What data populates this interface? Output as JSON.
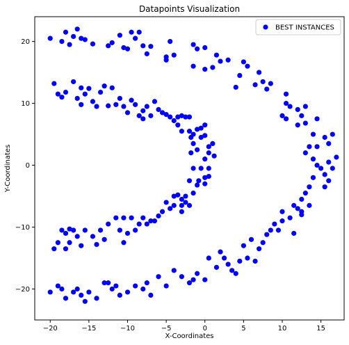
{
  "chart_data": {
    "type": "scatter",
    "title": "Datapoints Visualization",
    "xlabel": "X-Coordinates",
    "ylabel": "Y-Coordinates",
    "xlim": [
      -22,
      18
    ],
    "ylim": [
      -25,
      24
    ],
    "xticks": [
      -20,
      -15,
      -10,
      -5,
      0,
      5,
      10,
      15
    ],
    "yticks": [
      -20,
      -10,
      0,
      10,
      20
    ],
    "grid": false,
    "legend_position": "top-right",
    "color": "#0000ff",
    "series": [
      {
        "name": "BEST INSTANCES",
        "points": [
          [
            -20.0,
            20.5
          ],
          [
            -18.5,
            20.0
          ],
          [
            -18.0,
            21.5
          ],
          [
            -17.5,
            19.5
          ],
          [
            -17.0,
            20.8
          ],
          [
            -16.5,
            22.0
          ],
          [
            -16.0,
            20.5
          ],
          [
            -15.5,
            20.3
          ],
          [
            -14.5,
            19.6
          ],
          [
            -12.5,
            19.3
          ],
          [
            -12.0,
            19.8
          ],
          [
            -11.0,
            21.0
          ],
          [
            -10.5,
            19.0
          ],
          [
            -10.0,
            18.8
          ],
          [
            -9.5,
            21.5
          ],
          [
            -9.0,
            20.5
          ],
          [
            -8.5,
            21.5
          ],
          [
            -8.0,
            19.3
          ],
          [
            -7.5,
            18.0
          ],
          [
            -7.0,
            19.2
          ],
          [
            -5.0,
            17.0
          ],
          [
            -5.0,
            17.5
          ],
          [
            -4.5,
            20.0
          ],
          [
            -4.0,
            17.8
          ],
          [
            -1.5,
            19.5
          ],
          [
            -1.5,
            16.0
          ],
          [
            -1.0,
            18.8
          ],
          [
            0.0,
            19.0
          ],
          [
            0.0,
            15.5
          ],
          [
            1.0,
            15.8
          ],
          [
            1.5,
            17.8
          ],
          [
            2.0,
            16.8
          ],
          [
            3.0,
            17.0
          ],
          [
            4.0,
            12.6
          ],
          [
            4.5,
            14.5
          ],
          [
            5.0,
            16.7
          ],
          [
            5.5,
            16.0
          ],
          [
            6.5,
            13.0
          ],
          [
            7.0,
            15.0
          ],
          [
            7.5,
            13.5
          ],
          [
            8.0,
            12.3
          ],
          [
            8.5,
            13.2
          ],
          [
            -19.5,
            13.2
          ],
          [
            -19.0,
            11.5
          ],
          [
            -18.5,
            11.0
          ],
          [
            -18.0,
            11.8
          ],
          [
            -17.0,
            13.5
          ],
          [
            -16.5,
            10.8
          ],
          [
            -16.0,
            12.5
          ],
          [
            -16.0,
            9.8
          ],
          [
            -15.5,
            11.5
          ],
          [
            -15.0,
            12.4
          ],
          [
            -14.5,
            10.3
          ],
          [
            -14.0,
            9.5
          ],
          [
            -13.5,
            11.8
          ],
          [
            -13.0,
            12.8
          ],
          [
            -12.5,
            9.6
          ],
          [
            -12.0,
            12.5
          ],
          [
            -11.5,
            9.8
          ],
          [
            -11.0,
            10.8
          ],
          [
            -10.5,
            9.5
          ],
          [
            -10.0,
            8.5
          ],
          [
            -9.5,
            10.5
          ],
          [
            -9.0,
            9.8
          ],
          [
            -8.5,
            8.0
          ],
          [
            -8.0,
            7.5
          ],
          [
            -8.0,
            8.8
          ],
          [
            -7.5,
            9.5
          ],
          [
            -7.0,
            8.0
          ],
          [
            -6.5,
            10.3
          ],
          [
            -6.0,
            9.0
          ],
          [
            -5.5,
            8.5
          ],
          [
            -5.0,
            8.2
          ],
          [
            -4.5,
            7.8
          ],
          [
            -4.0,
            7.2
          ],
          [
            -3.5,
            6.5
          ],
          [
            -3.5,
            7.8
          ],
          [
            -3.0,
            8.0
          ],
          [
            -3.0,
            5.5
          ],
          [
            -2.5,
            7.8
          ],
          [
            -2.0,
            7.8
          ],
          [
            -2.0,
            5.5
          ],
          [
            -1.8,
            4.5
          ],
          [
            -1.5,
            3.5
          ],
          [
            -1.5,
            5.0
          ],
          [
            -1.0,
            5.8
          ],
          [
            -0.5,
            4.5
          ],
          [
            0.0,
            4.8
          ],
          [
            -0.5,
            6.0
          ],
          [
            0.0,
            6.5
          ],
          [
            0.5,
            3.0
          ],
          [
            0.5,
            2.0
          ],
          [
            1.0,
            3.5
          ],
          [
            1.2,
            1.5
          ],
          [
            -1.0,
            2.5
          ],
          [
            -1.8,
            2.0
          ],
          [
            0.0,
            1.0
          ],
          [
            -0.5,
            -0.5
          ],
          [
            0.5,
            -0.5
          ],
          [
            -1.5,
            -0.5
          ],
          [
            -0.8,
            -2.5
          ],
          [
            0.0,
            -2.0
          ],
          [
            0.5,
            -1.8
          ],
          [
            0.0,
            -3.0
          ],
          [
            -1.0,
            -3.2
          ],
          [
            -2.0,
            -2.5
          ],
          [
            -1.5,
            -4.5
          ],
          [
            -2.5,
            -5.0
          ],
          [
            -3.0,
            -5.5
          ],
          [
            -3.5,
            -4.8
          ],
          [
            -2.5,
            -6.0
          ],
          [
            -4.0,
            -6.5
          ],
          [
            -4.5,
            -7.0
          ],
          [
            -5.0,
            -6.0
          ],
          [
            -5.5,
            -7.5
          ],
          [
            -6.0,
            -8.2
          ],
          [
            -7.0,
            -9.0
          ],
          [
            -8.0,
            -8.5
          ],
          [
            -8.5,
            -9.5
          ],
          [
            -9.0,
            -10.5
          ],
          [
            -10.0,
            -11.0
          ],
          [
            -10.5,
            -12.5
          ],
          [
            -11.0,
            -10.5
          ],
          [
            -11.5,
            -8.5
          ],
          [
            -12.5,
            -9.5
          ],
          [
            -13.0,
            -12.0
          ],
          [
            -13.5,
            -10.5
          ],
          [
            -14.0,
            -12.8
          ],
          [
            -14.5,
            -11.5
          ],
          [
            -15.5,
            -10.5
          ],
          [
            -16.0,
            -13.0
          ],
          [
            -17.0,
            -10.5
          ],
          [
            -17.5,
            -10.3
          ],
          [
            -18.0,
            -11.0
          ],
          [
            -18.5,
            -10.5
          ],
          [
            -19.0,
            -12.5
          ],
          [
            -19.5,
            -13.5
          ],
          [
            -18.0,
            -13.5
          ],
          [
            -17.5,
            -12.5
          ],
          [
            -16.5,
            -11.5
          ],
          [
            -9.5,
            -8.5
          ],
          [
            -10.5,
            -8.5
          ],
          [
            -6.5,
            -9.0
          ],
          [
            -7.5,
            -9.5
          ],
          [
            -3.0,
            -7.5
          ],
          [
            -2.0,
            -6.5
          ],
          [
            -3.0,
            -6.5
          ],
          [
            -4.0,
            -5.0
          ],
          [
            10.5,
            11.5
          ],
          [
            10.5,
            10.0
          ],
          [
            11.0,
            9.5
          ],
          [
            10.0,
            8.0
          ],
          [
            10.5,
            7.5
          ],
          [
            12.0,
            9.0
          ],
          [
            13.0,
            9.5
          ],
          [
            12.5,
            8.0
          ],
          [
            12.0,
            6.5
          ],
          [
            13.0,
            6.8
          ],
          [
            14.5,
            7.5
          ],
          [
            14.0,
            5.0
          ],
          [
            14.5,
            3.0
          ],
          [
            15.5,
            4.5
          ],
          [
            16.5,
            5.0
          ],
          [
            16.0,
            3.5
          ],
          [
            13.5,
            3.0
          ],
          [
            13.0,
            2.0
          ],
          [
            14.0,
            1.0
          ],
          [
            14.5,
            0.0
          ],
          [
            15.0,
            -0.5
          ],
          [
            16.0,
            0.5
          ],
          [
            16.5,
            -0.5
          ],
          [
            17.0,
            1.3
          ],
          [
            15.5,
            -1.5
          ],
          [
            16.0,
            -2.5
          ],
          [
            15.5,
            -3.5
          ],
          [
            14.0,
            -2.0
          ],
          [
            13.5,
            -3.5
          ],
          [
            13.0,
            -4.5
          ],
          [
            13.5,
            -6.5
          ],
          [
            12.5,
            -5.5
          ],
          [
            12.0,
            -7.0
          ],
          [
            12.5,
            -7.5
          ],
          [
            11.0,
            -8.5
          ],
          [
            10.0,
            -9.0
          ],
          [
            9.0,
            -9.5
          ],
          [
            8.5,
            -10.5
          ],
          [
            8.0,
            -11.2
          ],
          [
            7.5,
            -12.5
          ],
          [
            7.0,
            -13.5
          ],
          [
            6.5,
            -15.5
          ],
          [
            5.5,
            -15.0
          ],
          [
            5.0,
            -13.0
          ],
          [
            4.5,
            -15.5
          ],
          [
            4.0,
            -17.5
          ],
          [
            3.0,
            -16.0
          ],
          [
            2.5,
            -15.0
          ],
          [
            2.0,
            -14.0
          ],
          [
            1.5,
            -16.5
          ],
          [
            0.5,
            -15.0
          ],
          [
            0.0,
            -18.5
          ],
          [
            -1.0,
            -17.5
          ],
          [
            -2.0,
            -19.0
          ],
          [
            -3.0,
            -18.0
          ],
          [
            -4.0,
            -17.0
          ],
          [
            -5.0,
            -19.5
          ],
          [
            -6.0,
            -18.0
          ],
          [
            -7.0,
            -21.0
          ],
          [
            -8.0,
            -20.0
          ],
          [
            -9.0,
            -19.5
          ],
          [
            -10.0,
            -20.5
          ],
          [
            -11.0,
            -21.0
          ],
          [
            -12.0,
            -20.0
          ],
          [
            -13.0,
            -19.0
          ],
          [
            -14.0,
            -21.5
          ],
          [
            -15.0,
            -20.5
          ],
          [
            -15.5,
            -22.0
          ],
          [
            -16.0,
            -21.0
          ],
          [
            -17.0,
            -20.5
          ],
          [
            -18.0,
            -21.5
          ],
          [
            -18.5,
            -20.0
          ],
          [
            -19.0,
            -19.5
          ],
          [
            -20.0,
            -20.5
          ],
          [
            -11.5,
            -19.5
          ],
          [
            -12.5,
            -19.0
          ],
          [
            -7.5,
            -19.0
          ],
          [
            -16.5,
            -20.0
          ],
          [
            11.5,
            -11.0
          ],
          [
            10.0,
            -7.5
          ],
          [
            11.5,
            -6.5
          ],
          [
            12.5,
            -8.0
          ],
          [
            9.5,
            -10.5
          ],
          [
            6.0,
            -12.0
          ],
          [
            -1.5,
            -18.5
          ],
          [
            3.5,
            -17.0
          ]
        ]
      }
    ]
  }
}
